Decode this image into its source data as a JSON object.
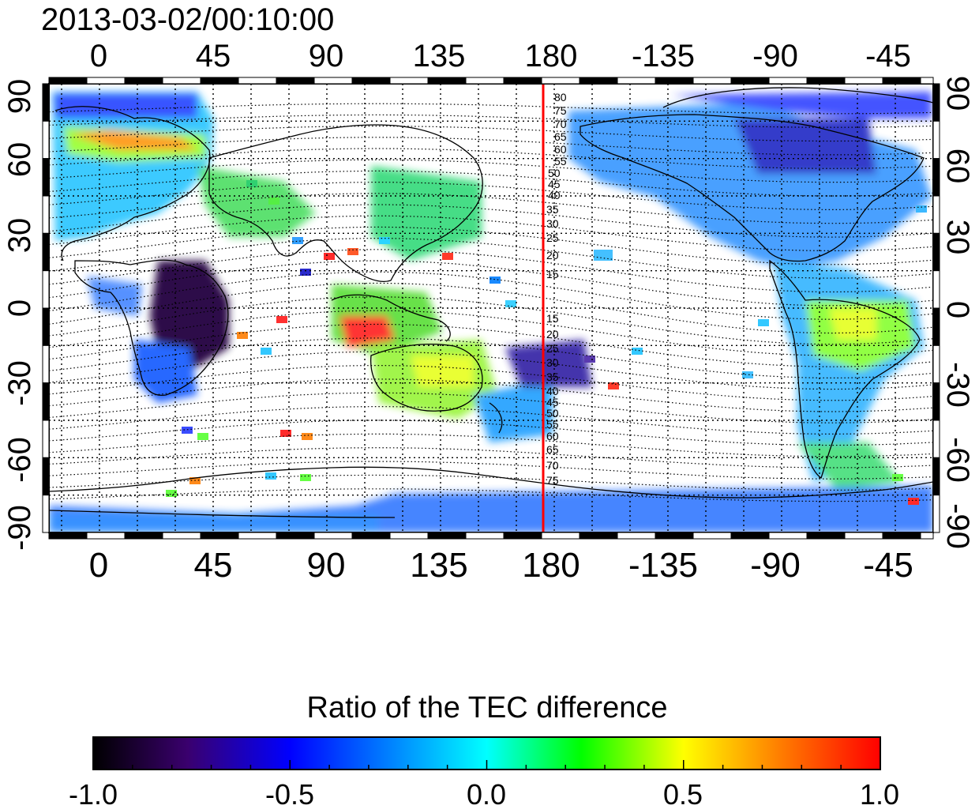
{
  "timestamp": "2013-03-02/00:10:00",
  "axes": {
    "top_lon_ticks": [
      "0",
      "45",
      "90",
      "135",
      "180",
      "-135",
      "-90",
      "-45"
    ],
    "bottom_lon_ticks": [
      "0",
      "45",
      "90",
      "135",
      "180",
      "-135",
      "-90",
      "-45"
    ],
    "left_lat_ticks": [
      "90",
      "60",
      "30",
      "0",
      "-30",
      "-60",
      "-90"
    ],
    "right_lat_ticks": [
      "90",
      "60",
      "30",
      "0",
      "-30",
      "-60",
      "-90"
    ],
    "lon_range": [
      -20,
      330
    ],
    "lat_range": [
      -90,
      90
    ]
  },
  "highlight_meridian": {
    "lon": 180,
    "color": "#ff0000"
  },
  "magnetic_lat_labels": {
    "north": [
      "80",
      "75",
      "70",
      "65",
      "60",
      "55",
      "50",
      "45",
      "40",
      "35",
      "30",
      "25",
      "20",
      "15"
    ],
    "south": [
      "15",
      "20",
      "25",
      "30",
      "35",
      "40",
      "45",
      "50",
      "55",
      "60",
      "65",
      "70",
      "75"
    ]
  },
  "colorbar": {
    "title": "Ratio of the TEC difference",
    "min": -1.0,
    "max": 1.0,
    "tick_labels": [
      "-1.0",
      "-0.5",
      "0.0",
      "0.5",
      "1.0"
    ],
    "stops": [
      "#000000",
      "#3a006e",
      "#0000ff",
      "#00ffff",
      "#00ff00",
      "#ffff00",
      "#ff8000",
      "#ff0000"
    ]
  }
}
